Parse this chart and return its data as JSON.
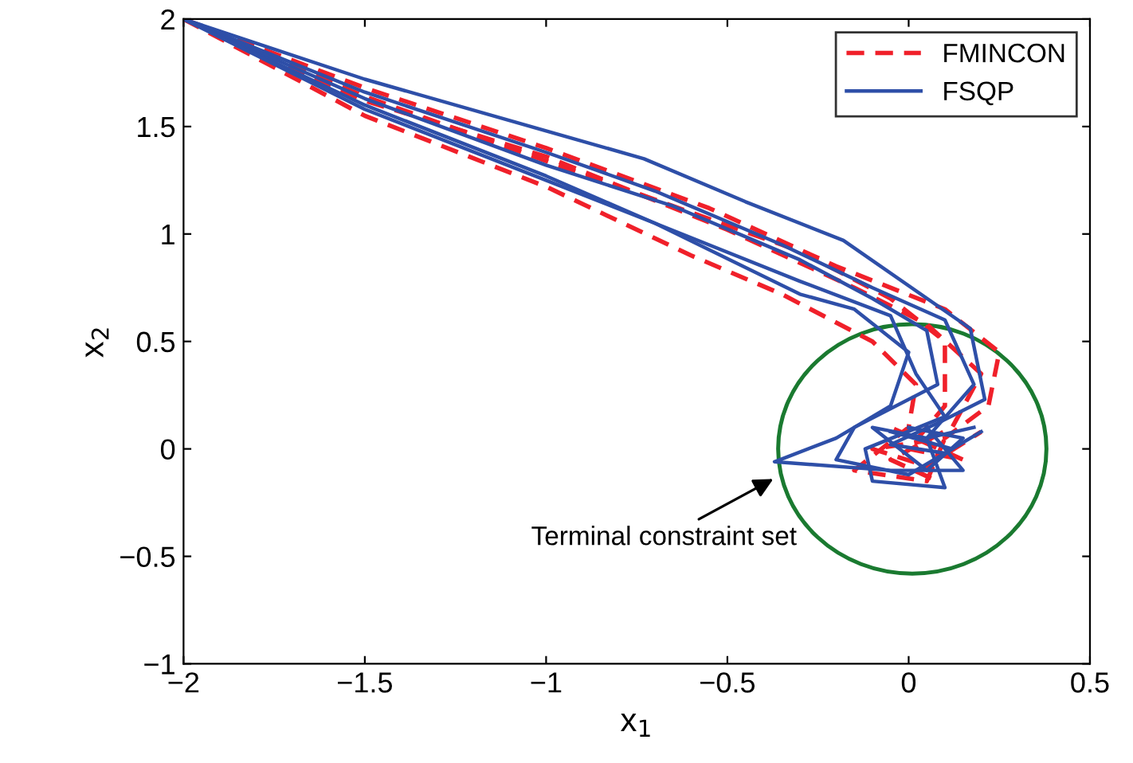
{
  "chart_data": {
    "type": "line",
    "xlabel": "x$_{1}$",
    "ylabel": "x$_{2}$",
    "xlim": [
      -2,
      0.5
    ],
    "xticks": [
      {
        "value": -2,
        "label": "−2"
      },
      {
        "value": -1.5,
        "label": "−1.5"
      },
      {
        "value": -1,
        "label": "−1"
      },
      {
        "value": -0.5,
        "label": "−0.5"
      },
      0,
      0.5
    ],
    "ylim": [
      -1,
      2
    ],
    "yticks": [
      {
        "value": -1,
        "label": "−1"
      },
      {
        "value": -0.5,
        "label": "−0.5"
      },
      0,
      0.5,
      1,
      1.5,
      2
    ],
    "grid": false,
    "legend": "top right",
    "marker": "none",
    "annotations": [
      "Terminal constraint set"
    ],
    "series": [
      {
        "name": "FMINCON",
        "color": "#f0202a",
        "line_style": "dashed",
        "x": [
          -2,
          -1.5,
          -1,
          -0.6,
          -0.35,
          -0.1,
          0.02,
          0.0,
          -0.15,
          0.05,
          0.1
        ],
        "values": [
          2,
          1.55,
          1.22,
          0.9,
          0.72,
          0.5,
          0.3,
          0.1,
          -0.1,
          -0.15,
          0.05
        ]
      },
      {
        "color": "#f0202a",
        "line_style": "dashed",
        "x": [
          -2,
          -1.5,
          -1,
          -0.6,
          -0.3,
          -0.05,
          0.1,
          0.1,
          0.0,
          0.15,
          -0.05
        ],
        "values": [
          2,
          1.64,
          1.34,
          1.1,
          0.92,
          0.7,
          0.5,
          0.2,
          0.0,
          -0.05,
          0.1
        ]
      },
      {
        "color": "#f0202a",
        "line_style": "dashed",
        "x": [
          -2,
          -1.5,
          -1,
          -0.55,
          -0.2,
          0.1,
          0.25,
          0.22,
          0.1,
          -0.1,
          0.05,
          0.2
        ],
        "values": [
          2,
          1.68,
          1.4,
          1.12,
          0.85,
          0.65,
          0.45,
          0.2,
          0.05,
          0.0,
          -0.08,
          0.08
        ]
      },
      {
        "color": "#f0202a",
        "line_style": "dashed",
        "x": [
          -2,
          -1.5,
          -1,
          -0.5,
          -0.15,
          0.05,
          0.2,
          0.12,
          -0.05,
          0.08
        ],
        "values": [
          2,
          1.62,
          1.36,
          1.02,
          0.75,
          0.58,
          0.35,
          0.1,
          -0.05,
          -0.15
        ]
      },
      {
        "name": "FSQP",
        "color": "#2e4fa8",
        "line_style": "solid",
        "x": [
          -2,
          -1.5,
          -1,
          -0.73,
          -0.45,
          -0.18,
          0.17,
          0.21,
          0.08,
          -0.05,
          0.1,
          0.2
        ],
        "values": [
          2,
          1.72,
          1.48,
          1.35,
          1.15,
          0.97,
          0.56,
          0.23,
          0.12,
          0.02,
          -0.02,
          0.08
        ]
      },
      {
        "color": "#2e4fa8",
        "line_style": "solid",
        "x": [
          -2,
          -1.5,
          -1,
          -0.7,
          -0.35,
          -0.1,
          0.1,
          0.18,
          0.05,
          -0.1,
          0.05,
          0.15,
          0.0
        ],
        "values": [
          2,
          1.66,
          1.38,
          1.2,
          0.95,
          0.75,
          0.6,
          0.3,
          0.05,
          0.1,
          -0.1,
          0.05,
          0.1
        ]
      },
      {
        "color": "#2e4fa8",
        "line_style": "solid",
        "x": [
          -2,
          -1.5,
          -1,
          -0.65,
          -0.3,
          -0.1,
          0.05,
          0.08,
          -0.15,
          -0.2,
          0.0,
          0.12,
          -0.05
        ],
        "values": [
          2,
          1.63,
          1.32,
          1.13,
          0.88,
          0.7,
          0.55,
          0.3,
          0.1,
          -0.05,
          -0.12,
          0.0,
          0.08
        ]
      },
      {
        "color": "#2e4fa8",
        "line_style": "solid",
        "x": [
          -2,
          -1.5,
          -1,
          -0.7,
          -0.3,
          -0.05,
          0.02,
          0.1,
          -0.12,
          -0.1,
          0.1,
          0.05,
          0.18
        ],
        "values": [
          2,
          1.6,
          1.27,
          1.05,
          0.78,
          0.62,
          0.35,
          0.15,
          0.0,
          -0.15,
          -0.18,
          0.05,
          0.1
        ]
      },
      {
        "color": "#2e4fa8",
        "line_style": "solid",
        "x": [
          -2,
          -1.5,
          -1,
          -0.7,
          -0.3,
          -0.15,
          0.0,
          -0.05,
          -0.2,
          -0.37,
          -0.05,
          0.15,
          0.05
        ],
        "values": [
          2,
          1.58,
          1.25,
          1.05,
          0.72,
          0.65,
          0.45,
          0.2,
          0.05,
          -0.06,
          -0.1,
          -0.1,
          0.1
        ]
      }
    ]
  }
}
